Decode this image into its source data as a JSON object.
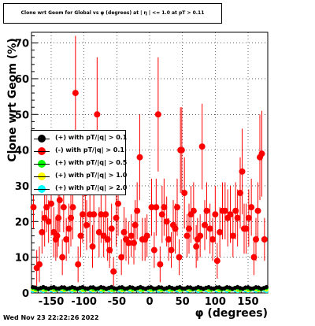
{
  "title": "Clone wrt Geom for Global vs φ (degrees) at | η | <= 1.0 at pT > 0.11",
  "timestamp": "Wed Nov 23 22:22:26 2022",
  "colors": {
    "red": "#ff0000",
    "black": "#000000",
    "green": "#00ff00",
    "yellow": "#ffff00",
    "cyan": "#00ffff"
  },
  "chart_data": {
    "type": "scatter",
    "title": "Clone wrt Geom for Global vs φ (degrees) at | η | <= 1.0 at pT > 0.11",
    "xlabel": "φ (degrees)",
    "ylabel": "Clone wrt Geom (%)",
    "xlim": [
      -180,
      180
    ],
    "ylim": [
      0,
      73
    ],
    "xticks": [
      -150,
      -100,
      -50,
      0,
      50,
      100,
      150
    ],
    "yticks": [
      0,
      10,
      20,
      30,
      40,
      50,
      60,
      70
    ],
    "grid": true,
    "legend_position": "left-middle",
    "legend": [
      "(+) with pT/|q| > 0.1",
      "(-) with pT/|q| > 0.1",
      "(+) with pT/|q| > 0.5",
      "(+) with pT/|q| > 1.0",
      "(+) with pT/|q| > 2.0"
    ],
    "series": [
      {
        "name": "(-) with pT/|q| > 0.1",
        "color": "#ff0000",
        "x": [
          -177,
          -172,
          -168,
          -164,
          -160,
          -157,
          -154,
          -150,
          -146,
          -143,
          -141,
          -139,
          -137,
          -133,
          -131,
          -127,
          -123,
          -120,
          -117,
          -113,
          -109,
          -105,
          -102,
          -98,
          -96,
          -91,
          -87,
          -85,
          -80,
          -77,
          -74,
          -70,
          -67,
          -64,
          -61,
          -58,
          -55,
          -51,
          -48,
          -43,
          -39,
          -36,
          -32,
          -28,
          -24,
          -22,
          -19,
          -15,
          -11,
          -7,
          -4,
          3,
          7,
          10,
          13,
          16,
          19,
          22,
          26,
          29,
          33,
          36,
          39,
          42,
          45,
          47,
          49,
          53,
          57,
          60,
          63,
          67,
          71,
          73,
          77,
          80,
          84,
          87,
          92,
          96,
          100,
          103,
          107,
          111,
          115,
          119,
          123,
          127,
          131,
          134,
          138,
          141,
          144,
          147,
          151,
          155,
          159,
          162,
          165,
          168,
          171,
          175
        ],
        "y": [
          24,
          7,
          8,
          17,
          21,
          24,
          20,
          25,
          17,
          15,
          16,
          21,
          26,
          10,
          24,
          15,
          18,
          21,
          24,
          56,
          8,
          16,
          22,
          28,
          19,
          22,
          13,
          22,
          50,
          17,
          22,
          16,
          22,
          15,
          12,
          18,
          6,
          21,
          25,
          10,
          17,
          15,
          14,
          16,
          14,
          19,
          23,
          38,
          15,
          15,
          16,
          24,
          12,
          24,
          50,
          8,
          22,
          24,
          20,
          15,
          12,
          19,
          18,
          24,
          10,
          40,
          40,
          28,
          16,
          18,
          22,
          23,
          13,
          15,
          16,
          41,
          19,
          23,
          18,
          15,
          22,
          9,
          17,
          23,
          23,
          21,
          22,
          16,
          23,
          21,
          28,
          34,
          18,
          18,
          21,
          24,
          10,
          15,
          23,
          38,
          39,
          15
        ],
        "err": [
          6,
          5,
          5,
          6,
          8,
          7,
          6,
          9,
          7,
          6,
          6,
          8,
          9,
          5,
          7,
          6,
          7,
          8,
          9,
          16,
          5,
          6,
          8,
          10,
          7,
          8,
          6,
          8,
          16,
          7,
          8,
          6,
          8,
          6,
          5,
          7,
          4,
          8,
          9,
          5,
          7,
          6,
          6,
          6,
          6,
          7,
          8,
          12,
          6,
          6,
          6,
          8,
          5,
          8,
          16,
          5,
          8,
          8,
          7,
          6,
          5,
          7,
          7,
          8,
          5,
          12,
          12,
          10,
          6,
          7,
          8,
          8,
          6,
          6,
          6,
          12,
          7,
          8,
          7,
          6,
          8,
          5,
          7,
          8,
          8,
          8,
          8,
          6,
          8,
          8,
          10,
          12,
          7,
          7,
          8,
          8,
          5,
          6,
          8,
          12,
          12,
          6
        ]
      },
      {
        "name": "(+) with pT/|q| > 0.1",
        "color": "#000000",
        "x_start": -178,
        "x_step": 4,
        "y_mean": 1.4
      },
      {
        "name": "(+) with pT/|q| > 0.5",
        "color": "#00ff00",
        "x_start": -178,
        "x_step": 4,
        "y_mean": 1.2
      },
      {
        "name": "(+) with pT/|q| > 1.0",
        "color": "#ffff00",
        "x_start": -178,
        "x_step": 4,
        "y_mean": 1.0
      },
      {
        "name": "(+) with pT/|q| > 2.0",
        "color": "#00ffff",
        "x_start": -178,
        "x_step": 4,
        "y_mean": 0.8
      }
    ]
  }
}
